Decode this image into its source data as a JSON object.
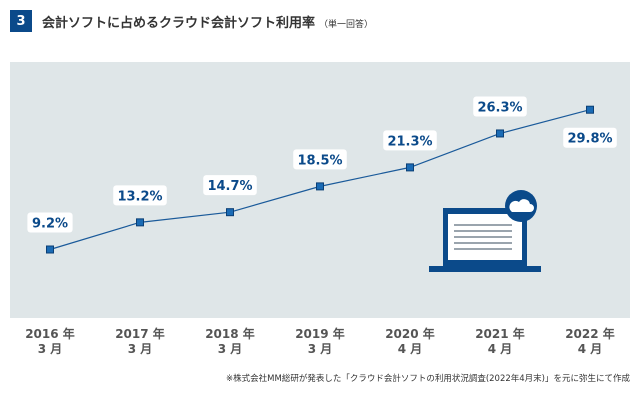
{
  "header": {
    "number": "3",
    "title": "会計ソフトに占めるクラウド会計ソフト利用率",
    "subtitle": "（単一回答）"
  },
  "chart_data": {
    "type": "line",
    "title": "会計ソフトに占めるクラウド会計ソフト利用率（単一回答）",
    "categories": [
      [
        "2016 年",
        "3 月"
      ],
      [
        "2017 年",
        "3 月"
      ],
      [
        "2018 年",
        "3 月"
      ],
      [
        "2019 年",
        "3 月"
      ],
      [
        "2020 年",
        "4 月"
      ],
      [
        "2021 年",
        "4 月"
      ],
      [
        "2022 年",
        "4 月"
      ]
    ],
    "values": [
      9.2,
      13.2,
      14.7,
      18.5,
      21.3,
      26.3,
      29.8
    ],
    "labels": [
      "9.2%",
      "13.2%",
      "14.7%",
      "18.5%",
      "21.3%",
      "26.3%",
      "29.8%"
    ],
    "ylim": [
      5,
      33
    ],
    "grid": false,
    "colors": {
      "line": "#1a5a9a",
      "marker": "#1a6bb5",
      "label": "#0b4a8a",
      "background": "#dfe6e8"
    }
  },
  "illustration": {
    "icon": "laptop-cloud-icon"
  },
  "footnote": "※株式会社MM総研が発表した「クラウド会計ソフトの利用状況調査(2022年4月末)」を元に弥生にて作成"
}
